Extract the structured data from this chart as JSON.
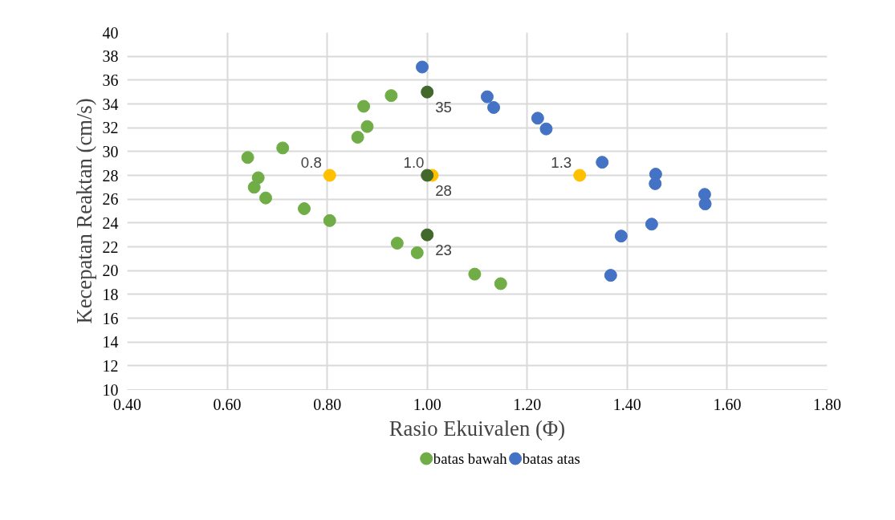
{
  "chart_data": {
    "type": "scatter",
    "xlabel": "Rasio Ekuivalen (Φ)",
    "ylabel": "Kecepatan Reaktan (cm/s)",
    "xlim": [
      0.4,
      1.8
    ],
    "xticks": [
      {
        "value": 0.4,
        "label": "0.40"
      },
      {
        "value": 0.6,
        "label": "0.60"
      },
      {
        "value": 0.8,
        "label": "0.80"
      },
      {
        "value": 1.0,
        "label": "1.00"
      },
      {
        "value": 1.2,
        "label": "1.20"
      },
      {
        "value": 1.4,
        "label": "1.40"
      },
      {
        "value": 1.6,
        "label": "1.60"
      },
      {
        "value": 1.8,
        "label": "1.80"
      }
    ],
    "ylim": [
      10,
      40
    ],
    "yticks": [
      10,
      12,
      14,
      16,
      18,
      20,
      22,
      24,
      26,
      28,
      30,
      32,
      34,
      36,
      38,
      40
    ],
    "grid": true,
    "legend": "bottom",
    "marker": "circle",
    "series": [
      {
        "name": "batas bawah",
        "color": "#70ad47",
        "x": [
          0.641,
          0.711,
          0.662,
          0.654,
          0.677,
          0.754,
          0.805,
          0.861,
          0.88,
          0.873,
          0.928,
          0.94,
          0.98,
          1.095,
          1.147
        ],
        "values": [
          29.5,
          30.3,
          27.8,
          27.0,
          26.1,
          25.2,
          24.2,
          31.2,
          32.1,
          33.8,
          34.7,
          22.3,
          21.5,
          19.7,
          18.9
        ]
      },
      {
        "name": "batas atas",
        "color": "#4472c4",
        "x": [
          0.99,
          1.12,
          1.133,
          1.221,
          1.238,
          1.35,
          1.388,
          1.367,
          1.457,
          1.456,
          1.555,
          1.556,
          1.449
        ],
        "values": [
          37.1,
          34.6,
          33.7,
          32.8,
          31.9,
          29.1,
          22.9,
          19.6,
          28.1,
          27.3,
          26.4,
          25.6,
          23.9
        ]
      },
      {
        "color": "#ffc000",
        "x": [
          0.805,
          1.01,
          1.305
        ],
        "values": [
          28,
          28,
          28
        ]
      },
      {
        "color": "#43682b",
        "x": [
          1.0,
          1.0,
          1.0
        ],
        "values": [
          35,
          28,
          23
        ]
      }
    ],
    "annotations": [
      {
        "text": "0.8",
        "x": 0.805,
        "y": 28
      },
      {
        "text": "1.0",
        "x": 1.01,
        "y": 28
      },
      {
        "text": "1.3",
        "x": 1.305,
        "y": 28
      },
      {
        "text": "35",
        "x": 1.0,
        "y": 35
      },
      {
        "text": "28",
        "x": 1.0,
        "y": 28
      },
      {
        "text": "23",
        "x": 1.0,
        "y": 23
      }
    ]
  }
}
